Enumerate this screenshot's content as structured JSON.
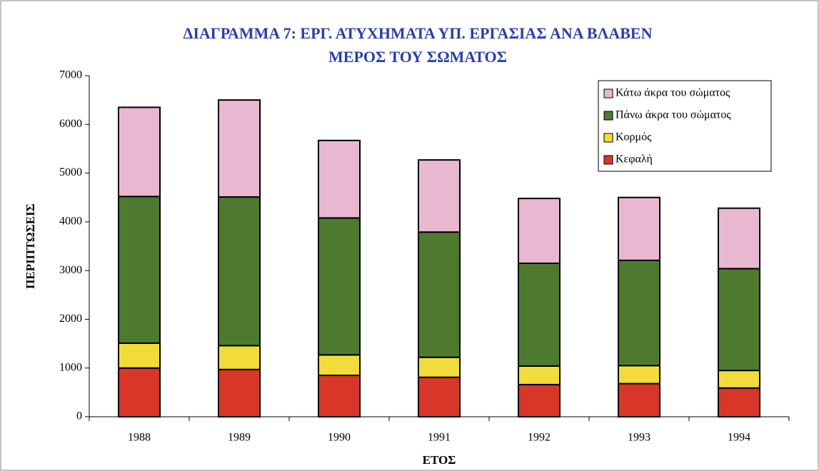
{
  "chart_data": {
    "type": "stacked_bar",
    "title": "ΔΙΑΓΡΑΜΜΑ 7: ΕΡΓ. ΑΤΥΧΗΜΑΤΑ ΥΠ. ΕΡΓΑΣΙΑΣ ΑΝΑ ΒΛΑΒΕΝ",
    "subtitle": "ΜΕΡΟΣ ΤΟΥ ΣΩΜΑΤΟΣ",
    "x_label": "ΕΤΟΣ",
    "y_label": "ΠΕΡΙΠΤΩΣΕΙΣ",
    "categories": [
      "1988",
      "1989",
      "1990",
      "1991",
      "1992",
      "1993",
      "1994"
    ],
    "series": [
      {
        "name": "Κεφαλή",
        "color": "#d9362a",
        "values": [
          1000,
          970,
          850,
          810,
          660,
          680,
          590
        ]
      },
      {
        "name": "Κορμός",
        "color": "#f2dc3c",
        "values": [
          510,
          490,
          420,
          410,
          380,
          370,
          360
        ]
      },
      {
        "name": "Πάνω άκρα του σώματος",
        "color": "#4e7a30",
        "values": [
          3010,
          3050,
          2810,
          2570,
          2110,
          2160,
          2090
        ]
      },
      {
        "name": "Κάτω άκρα του σώματος",
        "color": "#e8b8d0",
        "values": [
          1830,
          1990,
          1590,
          1480,
          1330,
          1290,
          1240
        ]
      }
    ],
    "ylim": [
      0,
      7000
    ],
    "yticks": [
      0,
      1000,
      2000,
      3000,
      4000,
      5000,
      6000,
      7000
    ],
    "grid": false,
    "legend": "top-right"
  }
}
